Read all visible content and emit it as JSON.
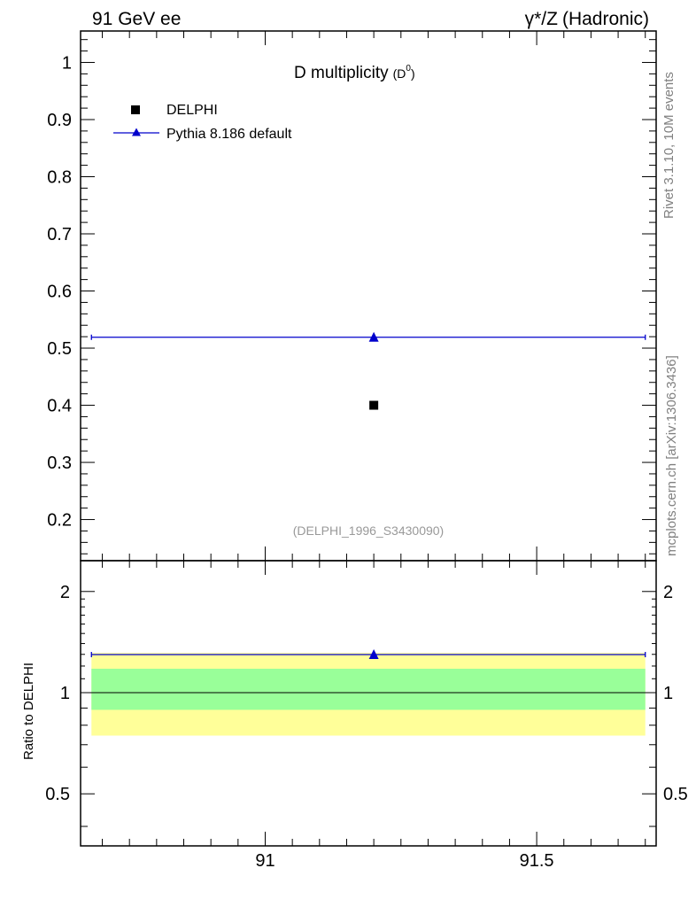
{
  "header": {
    "left": "91 GeV ee",
    "right_symbol": "γ*/Z",
    "right_text": "(Hadronic)"
  },
  "side": {
    "rivet": "Rivet 3.1.10,  10M events",
    "mcplots": "mcplots.cern.ch [arXiv:1306.3436]"
  },
  "colors": {
    "mc": "#0000cc",
    "data": "#000000",
    "band_inner": "#99ff99",
    "band_outer": "#ffff99",
    "id_text": "#999999",
    "side_text": "#808080"
  },
  "chart_data": [
    {
      "type": "scatter",
      "title_main": "D multiplicity",
      "title_paren_open": "(D",
      "title_sup": "0",
      "title_paren_close": ")",
      "analysis_id": "(DELPHI_1996_S3430090)",
      "xlim": [
        90.66,
        91.72
      ],
      "ylim": [
        0.128,
        1.055
      ],
      "yticks": [
        0.2,
        0.3,
        0.4,
        0.5,
        0.6,
        0.7,
        0.8,
        0.9,
        1
      ],
      "ytick_labels": [
        "0.2",
        "0.3",
        "0.4",
        "0.5",
        "0.6",
        "0.7",
        "0.8",
        "0.9",
        "1"
      ],
      "legend": [
        {
          "label": "DELPHI",
          "marker": "square"
        },
        {
          "label": "Pythia 8.186 default",
          "marker": "triangle"
        }
      ],
      "series": [
        {
          "name": "DELPHI",
          "x": [
            91.2
          ],
          "y": [
            0.4
          ],
          "marker": "square"
        },
        {
          "name": "Pythia 8.186 default",
          "x": [
            91.2
          ],
          "y": [
            0.519
          ],
          "xrange": [
            90.68,
            91.7
          ],
          "marker": "triangle"
        }
      ]
    },
    {
      "type": "scatter",
      "ylabel": "Ratio to DELPHI",
      "xlim": [
        90.66,
        91.72
      ],
      "ylim": [
        0.35,
        2.47
      ],
      "xticks": [
        91,
        91.5
      ],
      "xtick_labels": [
        "91",
        "91.5"
      ],
      "yticks": [
        0.5,
        1,
        2
      ],
      "ytick_labels": [
        "0.5",
        "1",
        "2"
      ],
      "bands": {
        "inner": [
          0.889,
          1.178
        ],
        "outer": [
          0.745,
          1.313
        ]
      },
      "series": [
        {
          "name": "Pythia 8.186 default",
          "x": [
            91.2
          ],
          "y": [
            1.298
          ],
          "xrange": [
            90.68,
            91.7
          ],
          "marker": "triangle"
        }
      ]
    }
  ]
}
